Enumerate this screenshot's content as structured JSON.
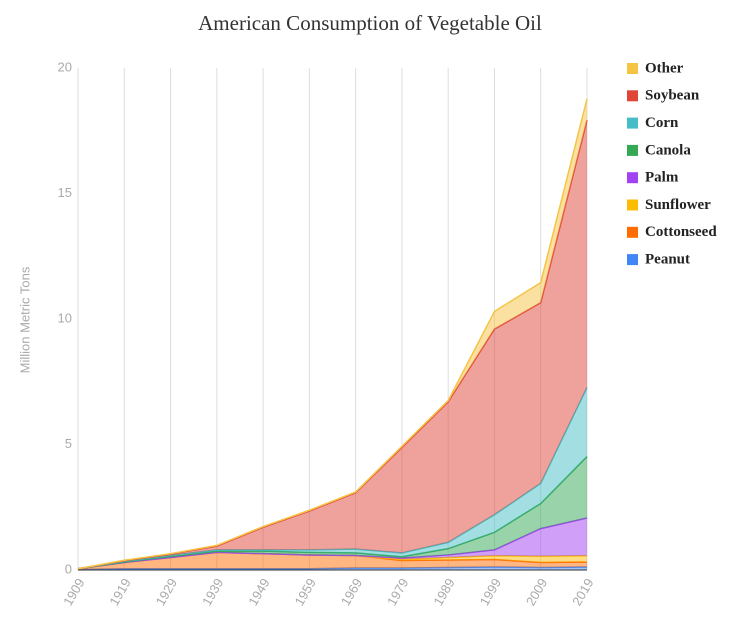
{
  "chart_data": {
    "type": "stacked-area",
    "title": "American Consumption of Vegetable Oil",
    "y_label": "Million Metric Tons",
    "x": [
      1909,
      1919,
      1929,
      1939,
      1949,
      1959,
      1969,
      1979,
      1989,
      1999,
      2009,
      2019
    ],
    "xlim": [
      1909,
      2019
    ],
    "xticks": [
      1909,
      1919,
      1929,
      1939,
      1949,
      1959,
      1969,
      1979,
      1989,
      1999,
      2009,
      2019
    ],
    "ylim": [
      0,
      20
    ],
    "yticks": [
      0,
      5,
      10,
      15,
      20
    ],
    "grid": true,
    "legend": "right",
    "series": [
      {
        "name": "Peanut",
        "color": "#4285f4",
        "values": [
          0.02,
          0.05,
          0.05,
          0.05,
          0.05,
          0.05,
          0.08,
          0.08,
          0.1,
          0.12,
          0.1,
          0.12
        ]
      },
      {
        "name": "Cottonseed",
        "color": "#ff6d01",
        "values": [
          0.03,
          0.25,
          0.45,
          0.65,
          0.6,
          0.55,
          0.5,
          0.3,
          0.3,
          0.3,
          0.2,
          0.2
        ]
      },
      {
        "name": "Sunflower",
        "color": "#fbbc04",
        "values": [
          0,
          0,
          0,
          0,
          0,
          0,
          0,
          0.05,
          0.1,
          0.15,
          0.25,
          0.25
        ]
      },
      {
        "name": "Palm",
        "color": "#a142f4",
        "values": [
          0,
          0,
          0,
          0,
          0,
          0,
          0,
          0.05,
          0.1,
          0.23,
          1.1,
          1.5
        ]
      },
      {
        "name": "Canola",
        "color": "#34a853",
        "values": [
          0,
          0.02,
          0.05,
          0.05,
          0.1,
          0.1,
          0.1,
          0.05,
          0.25,
          0.7,
          1.0,
          2.45
        ]
      },
      {
        "name": "Corn",
        "color": "#46bdc6",
        "values": [
          0,
          0.03,
          0.03,
          0.05,
          0.05,
          0.1,
          0.15,
          0.15,
          0.25,
          0.7,
          0.8,
          2.75
        ]
      },
      {
        "name": "Soybean",
        "color": "#e0453a",
        "values": [
          0,
          0.02,
          0.05,
          0.15,
          0.9,
          1.55,
          2.25,
          4.2,
          5.6,
          7.4,
          7.2,
          10.65
        ]
      },
      {
        "name": "Other",
        "color": "#f6c445",
        "values": [
          0,
          0.02,
          0.02,
          0.03,
          0.03,
          0.03,
          0.03,
          0.05,
          0.05,
          0.7,
          0.8,
          0.85
        ]
      }
    ]
  }
}
